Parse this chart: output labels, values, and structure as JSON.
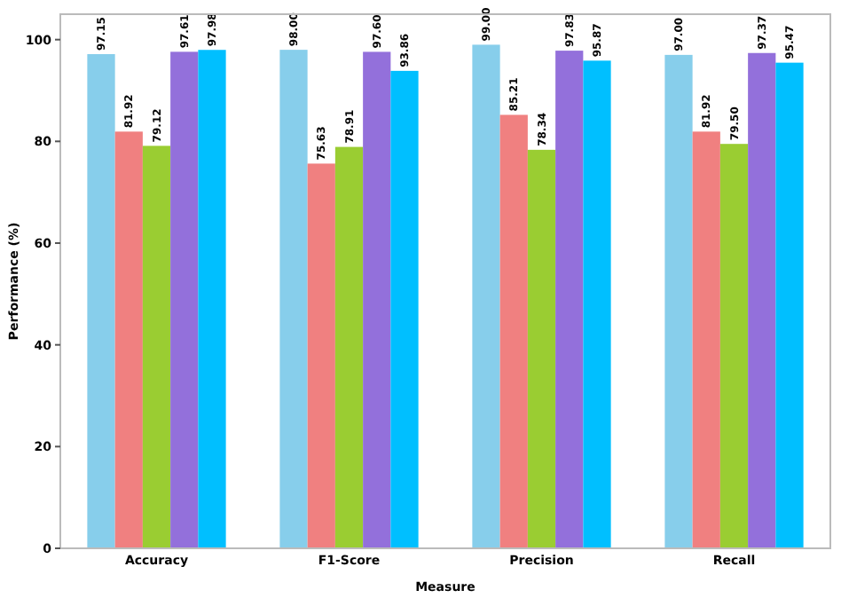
{
  "chart_data": {
    "type": "bar",
    "xlabel": "Measure",
    "ylabel": "Performance (%)",
    "categories": [
      "Accuracy",
      "F1-Score",
      "Precision",
      "Recall"
    ],
    "series": [
      {
        "color": "#87ceeb",
        "values": [
          97.15,
          98.0,
          99.0,
          97.0
        ],
        "value_labels": [
          "97.15",
          "98.00",
          "99.00",
          "97.00"
        ]
      },
      {
        "color": "#f08080",
        "values": [
          81.92,
          75.63,
          85.21,
          81.92
        ],
        "value_labels": [
          "81.92",
          "75.63",
          "85.21",
          "81.92"
        ]
      },
      {
        "color": "#9acd32",
        "values": [
          79.12,
          78.91,
          78.34,
          79.5
        ],
        "value_labels": [
          "79.12",
          "78.91",
          "78.34",
          "79.50"
        ]
      },
      {
        "color": "#9370db",
        "values": [
          97.61,
          97.6,
          97.83,
          97.37
        ],
        "value_labels": [
          "97.61",
          "97.60",
          "97.83",
          "97.37"
        ]
      },
      {
        "color": "#00bfff",
        "values": [
          97.98,
          93.86,
          95.87,
          95.47
        ],
        "value_labels": [
          "97.98",
          "93.86",
          "95.87",
          "95.47"
        ]
      }
    ],
    "ylim": [
      0,
      105
    ],
    "yticks": [
      0,
      20,
      40,
      60,
      80,
      100
    ]
  }
}
